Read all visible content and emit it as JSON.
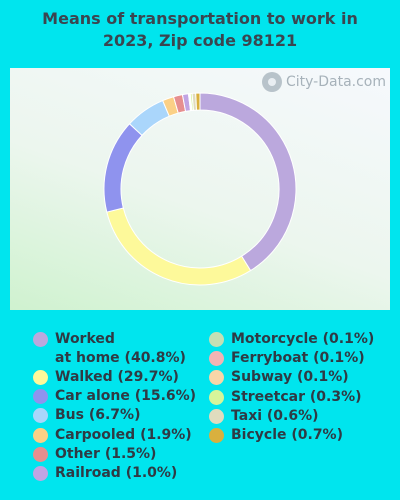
{
  "title_line1": "Means of transportation to work in",
  "title_line2": "2023, Zip code 98121",
  "watermark": "City-Data.com",
  "chart_data": {
    "type": "pie",
    "title": "Means of transportation to work in 2023, Zip code 98121",
    "slices": [
      {
        "label": "Worked at home",
        "value": 40.8,
        "color": "#bba8dd"
      },
      {
        "label": "Walked",
        "value": 29.7,
        "color": "#fdf99a"
      },
      {
        "label": "Car alone",
        "value": 15.6,
        "color": "#8f93ee"
      },
      {
        "label": "Bus",
        "value": 6.7,
        "color": "#aad6fb"
      },
      {
        "label": "Carpooled",
        "value": 1.9,
        "color": "#fbd086"
      },
      {
        "label": "Other",
        "value": 1.5,
        "color": "#e68f8f"
      },
      {
        "label": "Railroad",
        "value": 1.0,
        "color": "#c1a4e3"
      },
      {
        "label": "Motorcycle",
        "value": 0.1,
        "color": "#c4e0b4"
      },
      {
        "label": "Ferryboat",
        "value": 0.1,
        "color": "#f2b4b4"
      },
      {
        "label": "Subway",
        "value": 0.1,
        "color": "#f8d6a8"
      },
      {
        "label": "Streetcar",
        "value": 0.3,
        "color": "#d6f59a"
      },
      {
        "label": "Taxi",
        "value": 0.6,
        "color": "#e0dcbe"
      },
      {
        "label": "Bicycle",
        "value": 0.7,
        "color": "#d9b03e"
      }
    ]
  },
  "legend": {
    "left": [
      {
        "text": "Worked",
        "text2": "at home (40.8%)",
        "color": "#bba8dd"
      },
      {
        "text": "Walked (29.7%)",
        "color": "#fdf99a"
      },
      {
        "text": "Car alone (15.6%)",
        "color": "#8f93ee"
      },
      {
        "text": "Bus (6.7%)",
        "color": "#aad6fb"
      },
      {
        "text": "Carpooled (1.9%)",
        "color": "#fbd086"
      },
      {
        "text": "Other (1.5%)",
        "color": "#e68f8f"
      },
      {
        "text": "Railroad (1.0%)",
        "color": "#c1a4e3"
      }
    ],
    "right": [
      {
        "text": "Motorcycle (0.1%)",
        "color": "#c4e0b4"
      },
      {
        "text": "Ferryboat (0.1%)",
        "color": "#f2b4b4"
      },
      {
        "text": "Subway (0.1%)",
        "color": "#f8d6a8"
      },
      {
        "text": "Streetcar (0.3%)",
        "color": "#d6f59a"
      },
      {
        "text": "Taxi (0.6%)",
        "color": "#e0dcbe"
      },
      {
        "text": "Bicycle (0.7%)",
        "color": "#d9b03e"
      }
    ]
  }
}
